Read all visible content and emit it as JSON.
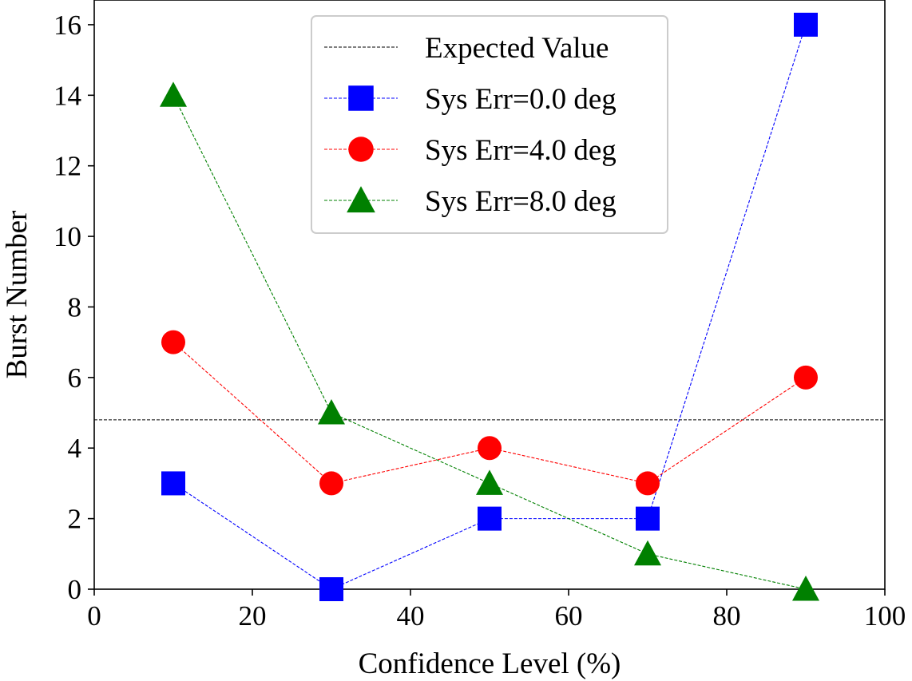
{
  "chart_data": {
    "type": "line",
    "title": "",
    "xlabel": "Confidence Level (%)",
    "ylabel": "Burst Number",
    "xlim": [
      0,
      100
    ],
    "ylim": [
      0,
      16.7
    ],
    "xticks": [
      "0",
      "20",
      "40",
      "60",
      "80",
      "100"
    ],
    "yticks": [
      "0",
      "2",
      "4",
      "6",
      "8",
      "10",
      "12",
      "14",
      "16"
    ],
    "grid": false,
    "legend_position": "top-center",
    "x": [
      10,
      30,
      50,
      70,
      90
    ],
    "reference_lines": [
      {
        "name": "Expected Value",
        "y": 4.8,
        "color": "#000000",
        "style": "dashed"
      }
    ],
    "series": [
      {
        "name": "Sys Err=0.0 deg",
        "values": [
          3,
          0,
          2,
          2,
          16
        ],
        "color": "#0000ff",
        "marker": "square",
        "style": "dashed"
      },
      {
        "name": "Sys Err=4.0 deg",
        "values": [
          7,
          3,
          4,
          3,
          6
        ],
        "color": "#ff0000",
        "marker": "circle",
        "style": "dashed"
      },
      {
        "name": "Sys Err=8.0 deg",
        "values": [
          14,
          5,
          3,
          1,
          0
        ],
        "color": "#008000",
        "marker": "triangle",
        "style": "dashed"
      }
    ]
  }
}
